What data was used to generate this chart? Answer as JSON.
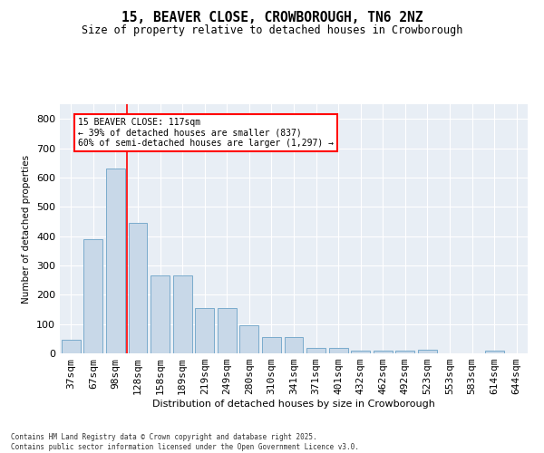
{
  "title": "15, BEAVER CLOSE, CROWBOROUGH, TN6 2NZ",
  "subtitle": "Size of property relative to detached houses in Crowborough",
  "xlabel": "Distribution of detached houses by size in Crowborough",
  "ylabel": "Number of detached properties",
  "categories": [
    "37sqm",
    "67sqm",
    "98sqm",
    "128sqm",
    "158sqm",
    "189sqm",
    "219sqm",
    "249sqm",
    "280sqm",
    "310sqm",
    "341sqm",
    "371sqm",
    "401sqm",
    "432sqm",
    "462sqm",
    "492sqm",
    "523sqm",
    "553sqm",
    "583sqm",
    "614sqm",
    "644sqm"
  ],
  "values": [
    47,
    390,
    630,
    445,
    265,
    265,
    155,
    155,
    97,
    57,
    57,
    20,
    20,
    10,
    10,
    10,
    12,
    0,
    0,
    8,
    0
  ],
  "bar_color": "#c8d8e8",
  "bar_edge_color": "#7aabcc",
  "vline_x": 2.5,
  "vline_color": "red",
  "annotation_line1": "15 BEAVER CLOSE: 117sqm",
  "annotation_line2": "← 39% of detached houses are smaller (837)",
  "annotation_line3": "60% of semi-detached houses are larger (1,297) →",
  "ylim": [
    0,
    850
  ],
  "yticks": [
    0,
    100,
    200,
    300,
    400,
    500,
    600,
    700,
    800
  ],
  "bg_color": "#e8eef5",
  "grid_color": "white",
  "footer_line1": "Contains HM Land Registry data © Crown copyright and database right 2025.",
  "footer_line2": "Contains public sector information licensed under the Open Government Licence v3.0."
}
